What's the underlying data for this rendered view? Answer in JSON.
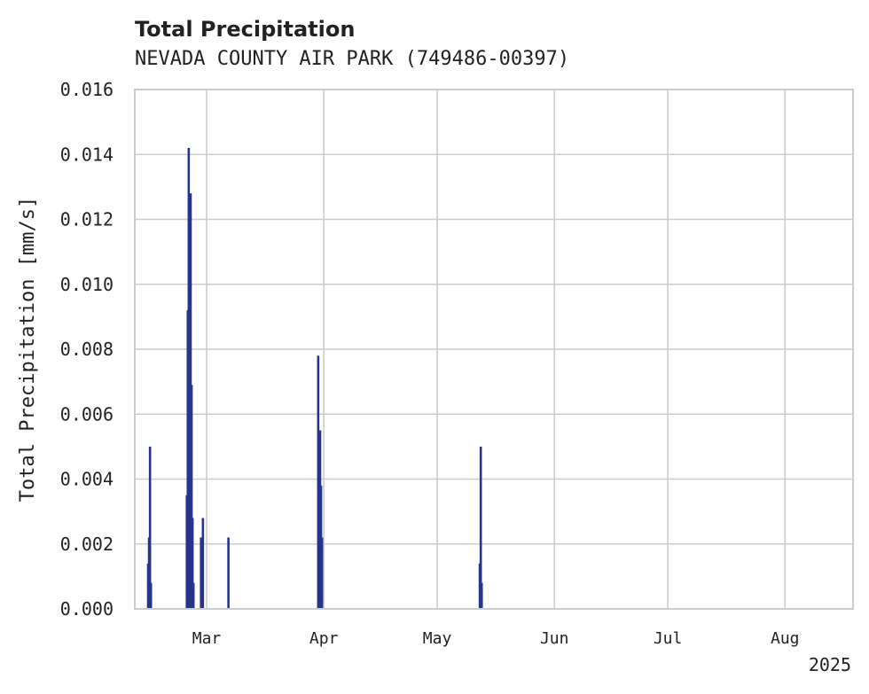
{
  "chart_data": {
    "type": "bar",
    "title": "Total Precipitation",
    "subtitle": "NEVADA COUNTY AIR PARK (749486-00397)",
    "xlabel": "",
    "ylabel": "Total Precipitation [mm/s]",
    "ylim": [
      0,
      0.016
    ],
    "yticks": [
      "0.000",
      "0.002",
      "0.004",
      "0.006",
      "0.008",
      "0.010",
      "0.012",
      "0.014",
      "0.016"
    ],
    "x_axis": {
      "start": "2025-02-10",
      "end": "2025-08-19",
      "ticks": [
        {
          "label": "Mar",
          "date": "2025-03-01"
        },
        {
          "label": "Apr",
          "date": "2025-04-01"
        },
        {
          "label": "May",
          "date": "2025-05-01"
        },
        {
          "label": "Jun",
          "date": "2025-06-01"
        },
        {
          "label": "Jul",
          "date": "2025-07-01"
        },
        {
          "label": "Aug",
          "date": "2025-08-01"
        }
      ],
      "year_label": "2025"
    },
    "color": "#26348c",
    "series": [
      {
        "name": "Total Precipitation",
        "points": [
          {
            "date": "2025-02-13T12:00",
            "value": 0.0014
          },
          {
            "date": "2025-02-13T18:00",
            "value": 0.0022
          },
          {
            "date": "2025-02-14T00:00",
            "value": 0.005
          },
          {
            "date": "2025-02-14T06:00",
            "value": 0.0008
          },
          {
            "date": "2025-02-23T18:00",
            "value": 0.0035
          },
          {
            "date": "2025-02-24T00:00",
            "value": 0.0092
          },
          {
            "date": "2025-02-24T06:00",
            "value": 0.0142
          },
          {
            "date": "2025-02-24T12:00",
            "value": 0.0105
          },
          {
            "date": "2025-02-24T18:00",
            "value": 0.0128
          },
          {
            "date": "2025-02-25T00:00",
            "value": 0.0069
          },
          {
            "date": "2025-02-25T06:00",
            "value": 0.0028
          },
          {
            "date": "2025-02-25T12:00",
            "value": 0.0008
          },
          {
            "date": "2025-02-27T12:00",
            "value": 0.0022
          },
          {
            "date": "2025-02-28T00:00",
            "value": 0.0028
          },
          {
            "date": "2025-03-06T18:00",
            "value": 0.0022
          },
          {
            "date": "2025-03-30T12:00",
            "value": 0.0078
          },
          {
            "date": "2025-03-30T18:00",
            "value": 0.0045
          },
          {
            "date": "2025-03-31T00:00",
            "value": 0.0055
          },
          {
            "date": "2025-03-31T06:00",
            "value": 0.0038
          },
          {
            "date": "2025-03-31T12:00",
            "value": 0.0022
          },
          {
            "date": "2025-05-12T06:00",
            "value": 0.0014
          },
          {
            "date": "2025-05-12T12:00",
            "value": 0.005
          },
          {
            "date": "2025-05-12T18:00",
            "value": 0.0008
          }
        ]
      }
    ]
  }
}
